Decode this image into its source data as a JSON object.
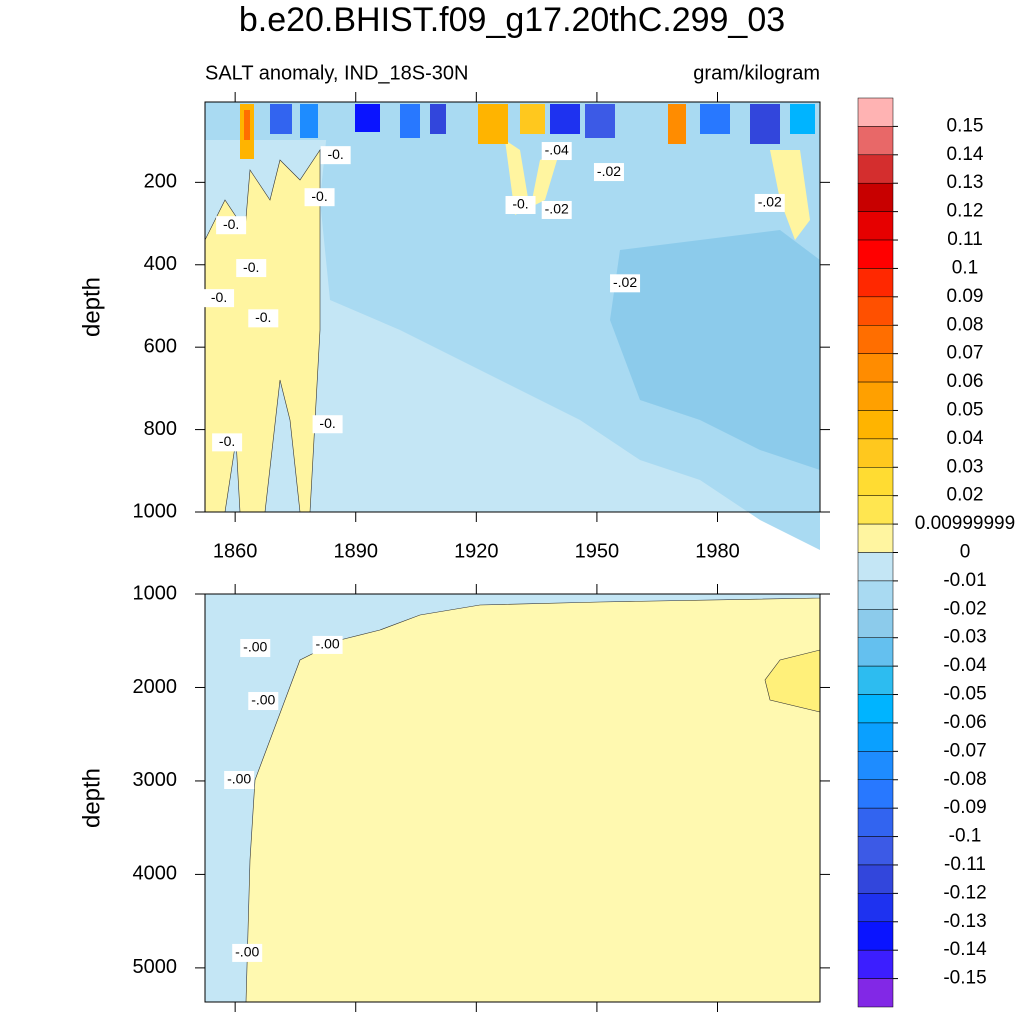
{
  "chart_data": {
    "type": "contour",
    "title": "b.e20.BHIST.f09_g17.20thC.299_03",
    "subtitle_left": "SALT anomaly, IND_18S-30N",
    "subtitle_right": "gram/kilogram",
    "xlim": [
      1852.5,
      2005.5
    ],
    "xticks": [
      1860,
      1890,
      1920,
      1950,
      1980
    ],
    "panels": [
      {
        "ylabel": "depth",
        "ylim": [
          5,
          1000
        ],
        "yticks": [
          200,
          400,
          600,
          800,
          1000
        ],
        "contour_labels": [
          {
            "text": "-.04",
            "x": 1940,
            "y": 124
          },
          {
            "text": "-.02",
            "x": 1953,
            "y": 175
          },
          {
            "text": "-.02",
            "x": 1940,
            "y": 267
          },
          {
            "text": "-0.",
            "x": 1931,
            "y": 255
          },
          {
            "text": "-.02",
            "x": 1993,
            "y": 250
          },
          {
            "text": "-.02",
            "x": 1957,
            "y": 445
          },
          {
            "text": "-0.",
            "x": 1885,
            "y": 134
          },
          {
            "text": "-0.",
            "x": 1881,
            "y": 236
          },
          {
            "text": "-0.",
            "x": 1859,
            "y": 304
          },
          {
            "text": "-0.",
            "x": 1864,
            "y": 408
          },
          {
            "text": "-0.",
            "x": 1856,
            "y": 481
          },
          {
            "text": "-0.",
            "x": 1867,
            "y": 530
          },
          {
            "text": "-0.",
            "x": 1883,
            "y": 787
          },
          {
            "text": "-0.",
            "x": 1858,
            "y": 831
          }
        ]
      },
      {
        "ylabel": "depth",
        "ylim": [
          1000,
          5365
        ],
        "yticks": [
          1000,
          2000,
          3000,
          4000,
          5000
        ],
        "contour_labels": [
          {
            "text": "-.00",
            "x": 1865,
            "y": 1578
          },
          {
            "text": "-.00",
            "x": 1883,
            "y": 1545
          },
          {
            "text": "-.00",
            "x": 1867,
            "y": 2145
          },
          {
            "text": "-.00",
            "x": 1861,
            "y": 2990
          },
          {
            "text": "-.00",
            "x": 1863,
            "y": 4840
          }
        ]
      }
    ],
    "colorbar": {
      "levels": [
        0.15,
        0.14,
        0.13,
        0.12,
        0.11,
        0.1,
        0.09,
        0.08,
        0.07,
        0.06,
        0.05,
        0.04,
        0.03,
        0.02,
        0.00999999,
        0,
        -0.01,
        -0.02,
        -0.03,
        -0.04,
        -0.05,
        -0.06,
        -0.07,
        -0.08,
        -0.09,
        -0.1,
        -0.11,
        -0.12,
        -0.13,
        -0.14,
        -0.15
      ],
      "colors": [
        "#ffb3b3",
        "#e86868",
        "#d42e2e",
        "#c80000",
        "#e60000",
        "#ff0000",
        "#ff2800",
        "#ff5000",
        "#ff6e00",
        "#ff8c00",
        "#ffa000",
        "#ffb400",
        "#ffc81e",
        "#ffdc32",
        "#ffe650",
        "#fff5a0",
        "#c4e6f5",
        "#a9daf2",
        "#8ccbeb",
        "#64c0ef",
        "#2dbcf0",
        "#00b4ff",
        "#0aa0ff",
        "#1e8cff",
        "#2878ff",
        "#3264f0",
        "#3c5ae6",
        "#3246dc",
        "#1e32f0",
        "#0a14ff",
        "#3c1eff",
        "#8228e6"
      ]
    }
  }
}
